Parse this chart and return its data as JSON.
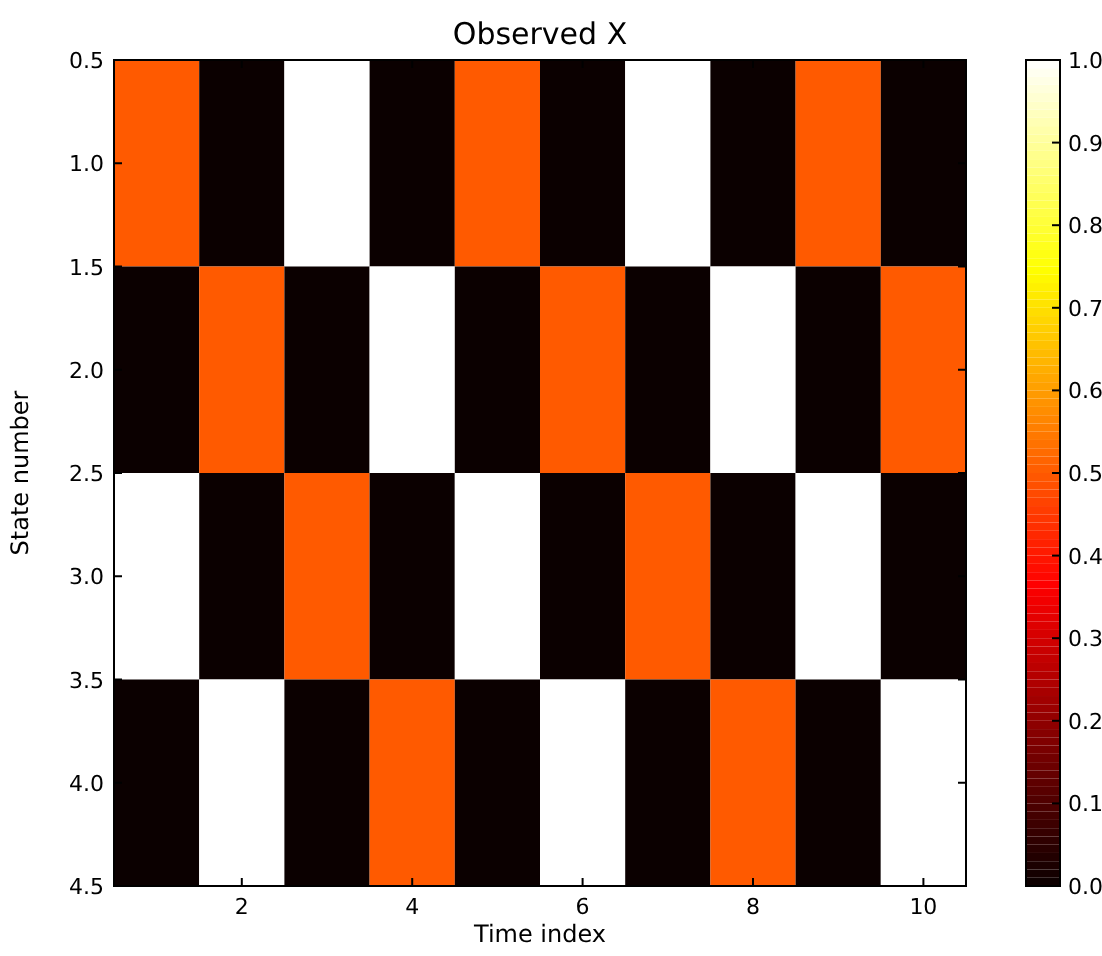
{
  "chart_data": {
    "type": "heatmap",
    "title": "Observed X",
    "xlabel": "Time index",
    "ylabel": "State number",
    "x": [
      1,
      2,
      3,
      4,
      5,
      6,
      7,
      8,
      9,
      10
    ],
    "y": [
      1,
      2,
      3,
      4
    ],
    "cells": [
      [
        0.5,
        0,
        1,
        0,
        0.5,
        0,
        1,
        0,
        0.5,
        0
      ],
      [
        0,
        0.5,
        0,
        1,
        0,
        0.5,
        0,
        1,
        0,
        0.5
      ],
      [
        1,
        0,
        0.5,
        0,
        1,
        0,
        0.5,
        0,
        1,
        0
      ],
      [
        0,
        1,
        0,
        0.5,
        0,
        1,
        0,
        0.5,
        0,
        1
      ]
    ],
    "xlim": [
      0.5,
      10.5
    ],
    "xticks": [
      2,
      4,
      6,
      8,
      10
    ],
    "ylim": [
      4.5,
      0.5
    ],
    "yticks": [
      {
        "value": 0.5,
        "label": "0.5"
      },
      {
        "value": 1,
        "label": "1.0"
      },
      {
        "value": 1.5,
        "label": "1.5"
      },
      {
        "value": 2,
        "label": "2.0"
      },
      {
        "value": 2.5,
        "label": "2.5"
      },
      {
        "value": 3,
        "label": "3.0"
      },
      {
        "value": 3.5,
        "label": "3.5"
      },
      {
        "value": 4,
        "label": "4.0"
      },
      {
        "value": 4.5,
        "label": "4.5"
      }
    ],
    "clim": [
      0,
      1
    ],
    "cticks": [
      {
        "value": 0,
        "label": "0.0"
      },
      {
        "value": 0.1,
        "label": "0.1"
      },
      {
        "value": 0.2,
        "label": "0.2"
      },
      {
        "value": 0.3,
        "label": "0.3"
      },
      {
        "value": 0.4,
        "label": "0.4"
      },
      {
        "value": 0.5,
        "label": "0.5"
      },
      {
        "value": 0.6,
        "label": "0.6"
      },
      {
        "value": 0.7,
        "label": "0.7"
      },
      {
        "value": 0.8,
        "label": "0.8"
      },
      {
        "value": 0.9,
        "label": "0.9"
      },
      {
        "value": 1,
        "label": "1.0"
      }
    ]
  }
}
